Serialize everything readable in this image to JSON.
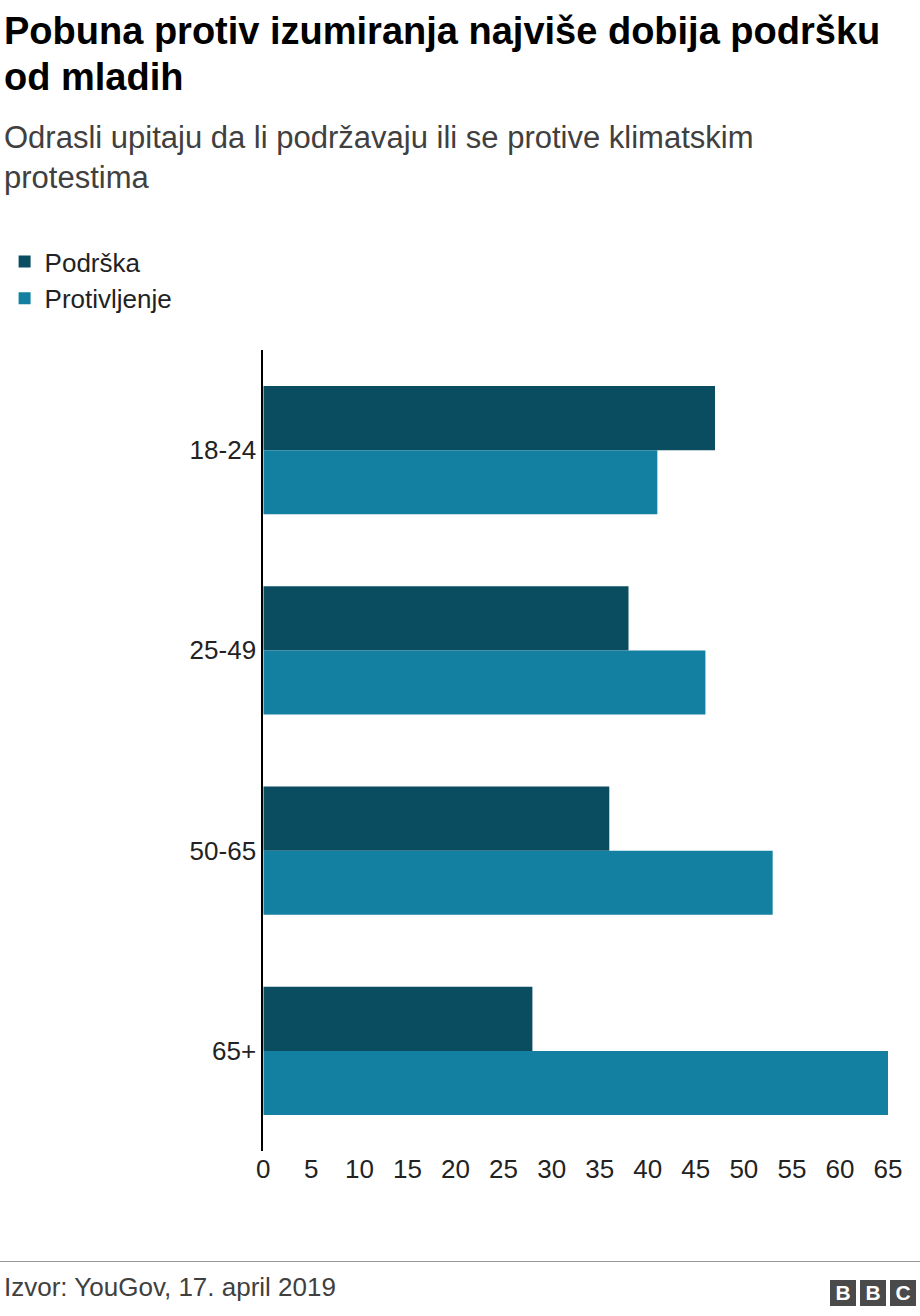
{
  "chart_data": {
    "type": "bar",
    "orientation": "horizontal",
    "title": "Pobuna protiv izumiranja najviše dobija podršku od mladih",
    "subtitle": "Odrasli upitaju da li podržavaju ili se protive klimatskim protestima",
    "categories": [
      "18-24",
      "25-49",
      "50-65",
      "65+"
    ],
    "series": [
      {
        "name": "Podrška",
        "color": "#0b4d60",
        "values": [
          47,
          38,
          36,
          28
        ]
      },
      {
        "name": "Protivljenje",
        "color": "#1380a1",
        "values": [
          41,
          46,
          53,
          65
        ]
      }
    ],
    "xlim": [
      0,
      65
    ],
    "xticks": [
      0,
      5,
      10,
      15,
      20,
      25,
      30,
      35,
      40,
      45,
      50,
      55,
      60,
      65
    ],
    "grid": false,
    "legend": "top-left",
    "source": "Izvor: YouGov, 17. april 2019",
    "logo": "BBC"
  }
}
